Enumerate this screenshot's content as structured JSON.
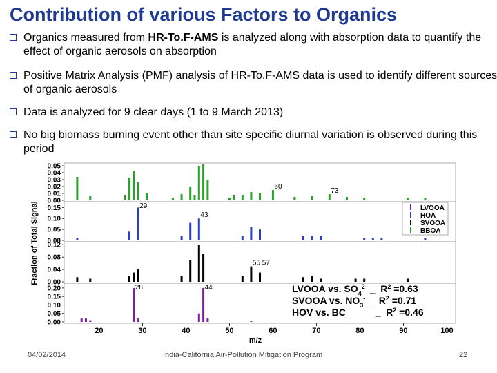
{
  "header": {
    "title": "Contribution of various Factors to Organics"
  },
  "bullets": [
    [
      {
        "text": "Organics measured from "
      },
      {
        "text": "HR-To.F-AMS",
        "bold": true
      },
      {
        "text": " is analyzed along with absorption data to quantify the effect of organic aerosols on absorption"
      }
    ],
    [
      {
        "text": "Positive Matrix Analysis (PMF) analysis of HR-To.F-AMS data is used to identify different sources of organic aerosols"
      }
    ],
    [
      {
        "text": "Data is analyzed for 9 clear days (1 to 9 March 2013)"
      }
    ],
    [
      {
        "text": "No big biomass burning event other than site specific diurnal variation is observed during this period"
      }
    ]
  ],
  "chart_data": {
    "type": "bar",
    "xlabel": "m/z",
    "ylabel": "Fraction of Total Signal",
    "xlim": [
      12,
      102
    ],
    "xticks": [
      20,
      30,
      40,
      50,
      60,
      70,
      80,
      90,
      100
    ],
    "panels": [
      {
        "name": "BBOA",
        "color": "#2ca02c",
        "ylim": [
          0,
          0.052
        ],
        "yticks": [
          {
            "value": 0,
            "label": "0.00"
          },
          0.01,
          0.02,
          0.03,
          0.04,
          0.05
        ],
        "x": [
          15,
          18,
          26,
          27,
          28,
          29,
          31,
          37,
          39,
          41,
          42,
          43,
          44,
          45,
          50,
          51,
          53,
          55,
          57,
          60,
          65,
          69,
          73,
          77,
          81,
          91,
          95
        ],
        "values": [
          0.034,
          0.006,
          0.007,
          0.033,
          0.042,
          0.026,
          0.01,
          0.004,
          0.009,
          0.02,
          0.007,
          0.05,
          0.052,
          0.03,
          0.004,
          0.008,
          0.008,
          0.012,
          0.01,
          0.015,
          0.005,
          0.006,
          0.009,
          0.005,
          0.004,
          0.004,
          0.003
        ],
        "annotations": [
          "60",
          "73"
        ]
      },
      {
        "name": "HOA",
        "color": "#2a3fc0",
        "ylim": [
          0,
          0.17
        ],
        "yticks": [
          {
            "value": 0,
            "label": "0.00"
          },
          0.05,
          {
            "value": 0.1,
            "label": "0.10"
          },
          0.15
        ],
        "x": [
          15,
          27,
          29,
          39,
          41,
          43,
          53,
          55,
          57,
          67,
          69,
          71,
          81,
          83,
          85,
          95
        ],
        "values": [
          0.01,
          0.04,
          0.15,
          0.02,
          0.08,
          0.1,
          0.02,
          0.06,
          0.05,
          0.02,
          0.02,
          0.02,
          0.01,
          0.01,
          0.01,
          0.01
        ],
        "annotations": [
          "29",
          "43"
        ]
      },
      {
        "name": "SVOOA",
        "color": "#000000",
        "ylim": [
          0,
          0.125
        ],
        "yticks": [
          {
            "value": 0,
            "label": "0.00"
          },
          0.04,
          0.08,
          0.12
        ],
        "x": [
          15,
          18,
          27,
          28,
          29,
          39,
          41,
          43,
          44,
          53,
          55,
          57,
          67,
          69,
          71,
          79,
          81,
          91
        ],
        "values": [
          0.015,
          0.01,
          0.02,
          0.03,
          0.04,
          0.02,
          0.07,
          0.12,
          0.09,
          0.02,
          0.05,
          0.03,
          0.015,
          0.02,
          0.01,
          0.01,
          0.01,
          0.01
        ],
        "annotations": [
          "55 57"
        ]
      },
      {
        "name": "LVOOA",
        "color": "#7b1fa2",
        "ylim": [
          0,
          0.22
        ],
        "yticks": [
          {
            "value": 0,
            "label": "0.00"
          },
          0.05,
          {
            "value": 0.1,
            "label": "0.10"
          },
          0.15,
          {
            "value": 0.2,
            "label": "0.20"
          }
        ],
        "x": [
          16,
          17,
          18,
          28,
          29,
          43,
          44,
          45,
          55
        ],
        "values": [
          0.02,
          0.02,
          0.01,
          0.2,
          0.02,
          0.05,
          0.2,
          0.02,
          0.005
        ],
        "annotations": [
          "28",
          "44"
        ]
      }
    ],
    "correlations": [
      [
        {
          "text": "LVOOA vs. SO"
        },
        {
          "text": "4",
          "shift": "sub"
        },
        {
          "text": "2-",
          "shift": "super"
        },
        {
          "text": " _  R"
        },
        {
          "text": "2",
          "shift": "super"
        },
        {
          "text": " =0.63"
        }
      ],
      [
        {
          "text": "SVOOA vs. NO"
        },
        {
          "text": "3",
          "shift": "sub"
        },
        {
          "text": "-",
          "shift": "super"
        },
        {
          "text": " _  R"
        },
        {
          "text": "2",
          "shift": "super"
        },
        {
          "text": " =0.71"
        }
      ],
      [
        {
          "text": "HOV vs. BC"
        },
        {
          "text": "           _  R"
        },
        {
          "text": "2",
          "shift": "super"
        },
        {
          "text": " =0.46"
        }
      ]
    ]
  },
  "footer": {
    "date": "04/02/2014",
    "program": "India-California Air-Pollution Mitigation Program",
    "page": "22"
  }
}
